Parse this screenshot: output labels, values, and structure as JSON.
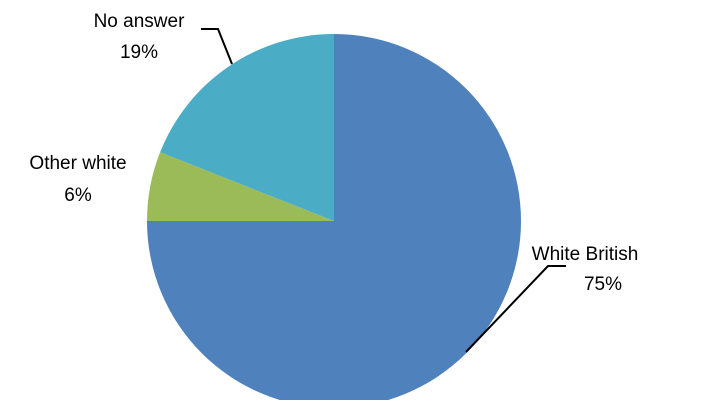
{
  "chart_data": {
    "type": "pie",
    "title": "",
    "slices": [
      {
        "label": "White British",
        "value": 75,
        "value_label": "75%",
        "color": "#4F81BD"
      },
      {
        "label": "Other white",
        "value": 6,
        "value_label": "6%",
        "color": "#9BBB59"
      },
      {
        "label": "No answer",
        "value": 19,
        "value_label": "19%",
        "color": "#4BACC6"
      }
    ],
    "legend": "none",
    "data_labels": "outside with leader lines"
  }
}
